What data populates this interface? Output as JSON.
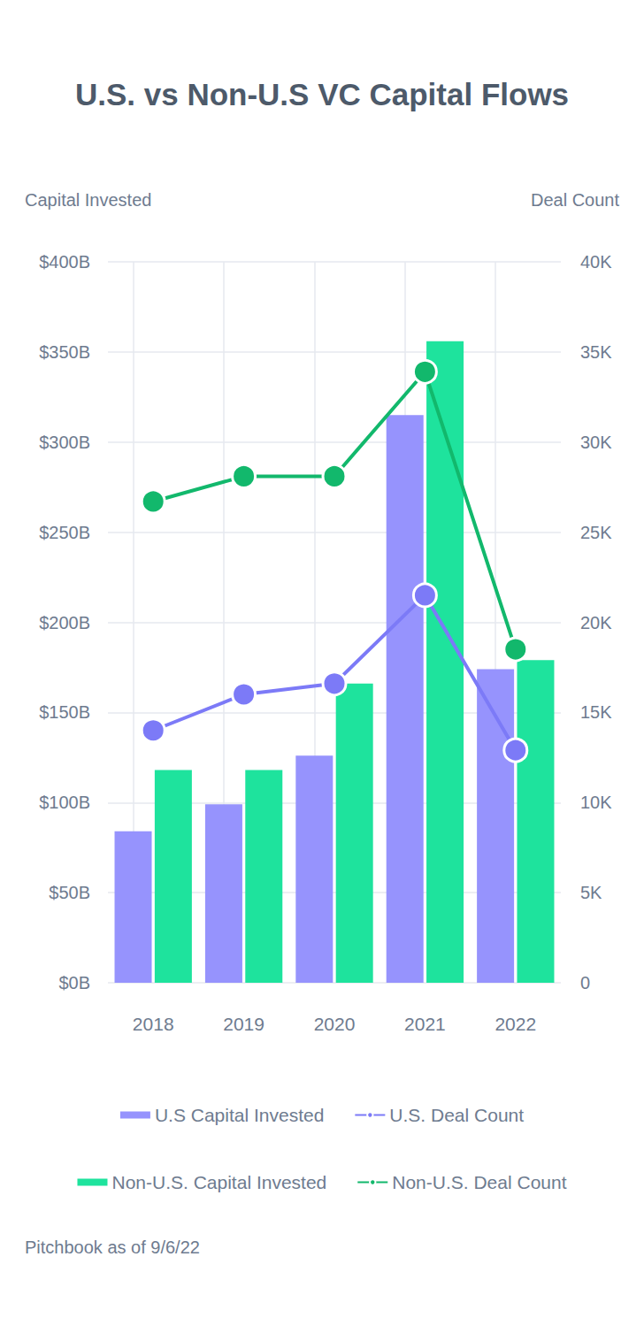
{
  "chart_data": {
    "type": "bar",
    "title": "U.S. vs Non-U.S VC Capital Flows",
    "y_label": "Capital Invested",
    "y2_label": "Deal Count",
    "source": "Pitchbook as of 9/6/22",
    "categories": [
      "2018",
      "2019",
      "2020",
      "2021",
      "2022"
    ],
    "series": [
      {
        "name": "U.S Capital Invested",
        "type": "bar",
        "color": "#9693fd",
        "values": [
          84,
          99,
          126,
          315,
          174
        ]
      },
      {
        "name": "U.S. Deal Count",
        "type": "line",
        "axis": "y2",
        "marker": "circle",
        "color": "#7c7af7",
        "values": [
          14000,
          16000,
          16600,
          21500,
          12900
        ]
      },
      {
        "name": "Non-U.S. Capital Invested",
        "type": "bar",
        "color": "#1ee39d",
        "values": [
          118,
          118,
          166,
          356,
          179
        ]
      },
      {
        "name": "Non-U.S. Deal Count",
        "type": "line",
        "axis": "y2",
        "marker": "circle",
        "color": "#12b86c",
        "values": [
          26700,
          28100,
          28100,
          33900,
          18500
        ]
      }
    ],
    "ylim": [
      0,
      400
    ],
    "yticks": [
      {
        "value": 0,
        "label": "$0B"
      },
      {
        "value": 50,
        "label": "$50B"
      },
      {
        "value": 100,
        "label": "$100B"
      },
      {
        "value": 150,
        "label": "$150B"
      },
      {
        "value": 200,
        "label": "$200B"
      },
      {
        "value": 250,
        "label": "$250B"
      },
      {
        "value": 300,
        "label": "$300B"
      },
      {
        "value": 350,
        "label": "$350B"
      },
      {
        "value": 400,
        "label": "$400B"
      }
    ],
    "y2lim": [
      0,
      40000
    ],
    "y2ticks": [
      0,
      {
        "value": 5000,
        "label": "5K"
      },
      {
        "value": 10000,
        "label": "10K"
      },
      {
        "value": 15000,
        "label": "15K"
      },
      {
        "value": 20000,
        "label": "20K"
      },
      {
        "value": 25000,
        "label": "25K"
      },
      {
        "value": 30000,
        "label": "30K"
      },
      {
        "value": 35000,
        "label": "35K"
      },
      {
        "value": 40000,
        "label": "40K"
      }
    ],
    "grid": true,
    "legend": "bottom"
  }
}
